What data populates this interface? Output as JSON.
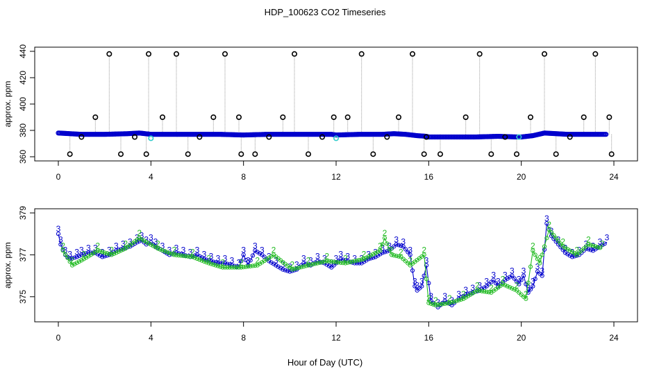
{
  "title": "HDP_100623  CO2 Timeseries",
  "xlabel": "Hour of Day (UTC)",
  "colors": {
    "axis": "#000000",
    "flagged": "#000000",
    "series_primary": "#0000cc",
    "series_alt": "#22bb22",
    "highlight": "#33cccc",
    "drop_line": "#999999"
  },
  "chart_data": [
    {
      "type": "scatter",
      "ylabel": "approx. ppm",
      "xlim": [
        0,
        24
      ],
      "ylim": [
        360,
        440
      ],
      "x_ticks": [
        "0",
        "4",
        "8",
        "12",
        "16",
        "20",
        "24"
      ],
      "y_ticks": [
        "360",
        "380",
        "400",
        "420",
        "440"
      ],
      "series": [
        {
          "marker": "circle",
          "color": "#000000",
          "x": [
            0.5,
            1.0,
            1.6,
            2.2,
            2.7,
            3.3,
            3.8,
            3.9,
            4.5,
            5.1,
            5.6,
            6.1,
            6.7,
            7.2,
            7.8,
            7.9,
            8.5,
            9.1,
            9.7,
            10.2,
            10.8,
            11.4,
            11.9,
            12.5,
            13.1,
            13.6,
            14.2,
            14.7,
            15.3,
            15.8,
            15.9,
            16.5,
            17.6,
            18.2,
            18.7,
            19.3,
            19.8,
            20.4,
            21.0,
            21.5,
            22.1,
            22.7,
            23.2,
            23.8,
            23.9
          ],
          "y": [
            362,
            375,
            390,
            438,
            362,
            375,
            362,
            438,
            390,
            438,
            362,
            375,
            390,
            438,
            390,
            362,
            362,
            375,
            390,
            438,
            362,
            375,
            390,
            390,
            438,
            362,
            375,
            390,
            438,
            362,
            375,
            362,
            390,
            438,
            362,
            375,
            362,
            390,
            438,
            362,
            375,
            390,
            438,
            390,
            362
          ]
        },
        {
          "marker": "circle",
          "color": "#0000cc",
          "x": [
            0,
            1,
            2,
            3,
            3.5,
            4,
            5,
            6,
            7,
            8,
            9,
            10,
            11,
            11.8,
            12,
            13,
            14,
            14.5,
            15,
            15.5,
            15.9,
            16,
            17,
            18,
            19,
            19.8,
            20,
            20.5,
            21,
            21.5,
            22,
            23,
            23.7
          ],
          "y": [
            378,
            377,
            377,
            377.5,
            378,
            377,
            377,
            377,
            377,
            376.5,
            377,
            377,
            377,
            377,
            376.5,
            377,
            377,
            377.5,
            377,
            376,
            375.5,
            375,
            375,
            375,
            375.5,
            375,
            375,
            376,
            378,
            377.5,
            377,
            377,
            377
          ]
        },
        {
          "marker": "circle",
          "color": "#33cccc",
          "x": [
            4.0,
            12.0,
            19.9
          ],
          "y": [
            374,
            374,
            375
          ]
        }
      ]
    },
    {
      "type": "line",
      "ylabel": "approx. ppm",
      "xlim": [
        0,
        24
      ],
      "ylim": [
        374,
        379
      ],
      "x_ticks": [
        "0",
        "4",
        "8",
        "12",
        "16",
        "20",
        "24"
      ],
      "y_ticks": [
        "375",
        "377",
        "379"
      ],
      "series": [
        {
          "marker_label": "3",
          "color": "#0000cc",
          "x": [
            0.0,
            0.1,
            0.3,
            0.5,
            0.8,
            1.0,
            1.3,
            1.6,
            1.9,
            2.2,
            2.5,
            2.8,
            3.1,
            3.4,
            3.6,
            3.8,
            4.0,
            4.2,
            4.5,
            4.8,
            5.1,
            5.4,
            5.7,
            6.0,
            6.3,
            6.6,
            6.9,
            7.2,
            7.5,
            7.8,
            8.0,
            8.2,
            8.5,
            8.8,
            9.1,
            9.4,
            9.7,
            10.0,
            10.3,
            10.6,
            10.9,
            11.2,
            11.5,
            11.8,
            12.0,
            12.2,
            12.5,
            12.8,
            13.1,
            13.4,
            13.7,
            14.0,
            14.3,
            14.6,
            14.9,
            15.2,
            15.4,
            15.5,
            15.7,
            15.9,
            16.1,
            16.4,
            16.7,
            17.0,
            17.3,
            17.6,
            17.9,
            18.2,
            18.5,
            18.8,
            19.0,
            19.3,
            19.6,
            19.9,
            20.1,
            20.3,
            20.5,
            20.7,
            20.9,
            21.1,
            21.3,
            21.6,
            21.9,
            22.2,
            22.5,
            22.8,
            23.1,
            23.4,
            23.7
          ],
          "y": [
            378.0,
            377.5,
            377.0,
            376.8,
            376.9,
            377.0,
            377.1,
            377.1,
            376.9,
            377.0,
            377.2,
            377.3,
            377.4,
            377.6,
            377.7,
            377.5,
            377.6,
            377.4,
            377.2,
            377.0,
            377.1,
            377.0,
            376.9,
            377.0,
            376.8,
            376.7,
            376.6,
            376.6,
            376.5,
            376.4,
            377.0,
            376.5,
            377.2,
            377.0,
            376.7,
            376.5,
            376.3,
            376.2,
            376.3,
            376.6,
            376.5,
            376.7,
            376.6,
            376.4,
            376.6,
            376.8,
            376.7,
            376.6,
            376.6,
            376.8,
            376.9,
            377.1,
            377.2,
            377.5,
            377.4,
            377.0,
            375.5,
            375.3,
            375.5,
            376.5,
            374.8,
            374.5,
            374.8,
            374.6,
            374.9,
            375.1,
            375.2,
            375.3,
            375.5,
            375.8,
            375.5,
            375.8,
            376.0,
            375.6,
            376.0,
            375.2,
            375.5,
            376.2,
            376.0,
            378.5,
            377.9,
            377.5,
            377.1,
            376.9,
            377.0,
            377.3,
            377.2,
            377.4,
            377.6
          ]
        },
        {
          "marker_label": "2",
          "color": "#22bb22",
          "x": [
            0.2,
            0.6,
            1.1,
            1.7,
            2.3,
            2.9,
            3.5,
            4.3,
            5.0,
            5.8,
            6.5,
            7.1,
            7.9,
            8.6,
            9.3,
            10.1,
            10.8,
            11.6,
            12.4,
            13.2,
            13.9,
            14.1,
            14.4,
            14.8,
            15.2,
            15.8,
            16.0,
            16.3,
            16.9,
            17.5,
            18.1,
            18.7,
            19.2,
            19.8,
            20.2,
            20.5,
            20.8,
            21.2,
            21.8,
            22.4,
            22.9,
            23.5
          ],
          "y": [
            377.2,
            376.5,
            376.8,
            377.2,
            377.0,
            377.3,
            377.8,
            377.3,
            377.0,
            376.9,
            376.6,
            376.4,
            376.4,
            376.5,
            377.0,
            376.3,
            376.5,
            376.7,
            376.6,
            376.8,
            377.2,
            377.8,
            377.0,
            376.9,
            376.5,
            377.0,
            374.7,
            374.6,
            374.7,
            374.9,
            375.3,
            375.2,
            375.6,
            375.3,
            374.9,
            377.2,
            376.6,
            378.2,
            377.4,
            377.0,
            377.5,
            377.3
          ]
        }
      ]
    }
  ]
}
